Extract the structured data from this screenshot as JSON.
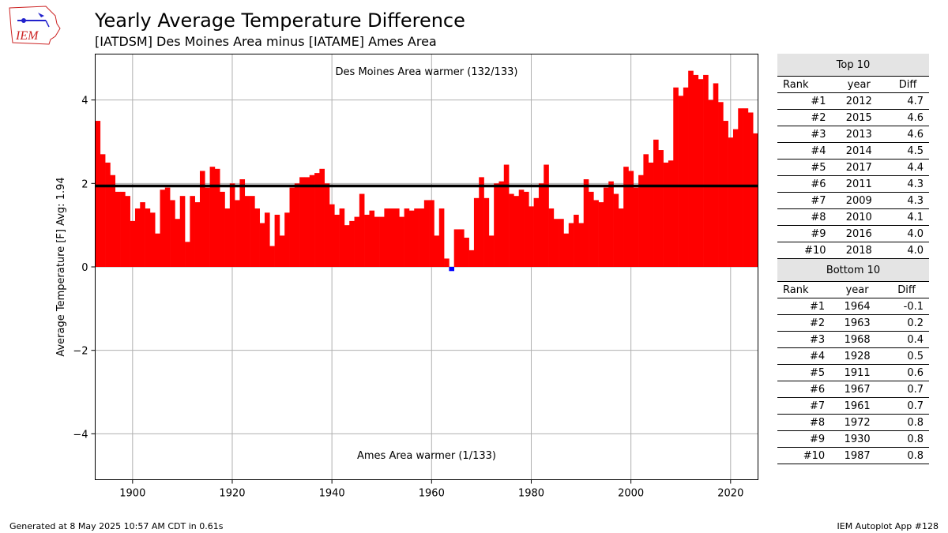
{
  "header": {
    "title": "Yearly Average Temperature Difference",
    "subtitle": "[IATDSM] Des Moines Area minus [IATAME] Ames Area",
    "logo_text": "IEM"
  },
  "chart_data": {
    "type": "bar",
    "x": [
      1893,
      1894,
      1895,
      1896,
      1897,
      1898,
      1899,
      1900,
      1901,
      1902,
      1903,
      1904,
      1905,
      1906,
      1907,
      1908,
      1909,
      1910,
      1911,
      1912,
      1913,
      1914,
      1915,
      1916,
      1917,
      1918,
      1919,
      1920,
      1921,
      1922,
      1923,
      1924,
      1925,
      1926,
      1927,
      1928,
      1929,
      1930,
      1931,
      1932,
      1933,
      1934,
      1935,
      1936,
      1937,
      1938,
      1939,
      1940,
      1941,
      1942,
      1943,
      1944,
      1945,
      1946,
      1947,
      1948,
      1949,
      1950,
      1951,
      1952,
      1953,
      1954,
      1955,
      1956,
      1957,
      1958,
      1959,
      1960,
      1961,
      1962,
      1963,
      1964,
      1965,
      1966,
      1967,
      1968,
      1969,
      1970,
      1971,
      1972,
      1973,
      1974,
      1975,
      1976,
      1977,
      1978,
      1979,
      1980,
      1981,
      1982,
      1983,
      1984,
      1985,
      1986,
      1987,
      1988,
      1989,
      1990,
      1991,
      1992,
      1993,
      1994,
      1995,
      1996,
      1997,
      1998,
      1999,
      2000,
      2001,
      2002,
      2003,
      2004,
      2005,
      2006,
      2007,
      2008,
      2009,
      2010,
      2011,
      2012,
      2013,
      2014,
      2015,
      2016,
      2017,
      2018,
      2019,
      2020,
      2021,
      2022,
      2023,
      2024,
      2025
    ],
    "values": [
      3.5,
      2.7,
      2.5,
      2.2,
      1.8,
      1.8,
      1.7,
      1.1,
      1.4,
      1.55,
      1.4,
      1.3,
      0.8,
      1.85,
      1.9,
      1.6,
      1.15,
      1.7,
      0.6,
      1.7,
      1.55,
      2.3,
      1.9,
      2.4,
      2.35,
      1.8,
      1.4,
      2.0,
      1.6,
      2.1,
      1.7,
      1.7,
      1.4,
      1.05,
      1.3,
      0.5,
      1.25,
      0.75,
      1.3,
      1.9,
      2.0,
      2.15,
      2.15,
      2.2,
      2.25,
      2.35,
      2.0,
      1.5,
      1.25,
      1.4,
      1.0,
      1.1,
      1.2,
      1.75,
      1.25,
      1.35,
      1.2,
      1.2,
      1.4,
      1.4,
      1.4,
      1.2,
      1.4,
      1.35,
      1.4,
      1.4,
      1.6,
      1.6,
      0.75,
      1.4,
      0.2,
      -0.1,
      0.9,
      0.9,
      0.7,
      0.4,
      1.65,
      2.15,
      1.65,
      0.75,
      2.0,
      2.05,
      2.45,
      1.75,
      1.7,
      1.85,
      1.8,
      1.45,
      1.65,
      2.0,
      2.45,
      1.4,
      1.15,
      1.15,
      0.8,
      1.05,
      1.25,
      1.05,
      2.1,
      1.8,
      1.6,
      1.55,
      1.9,
      2.05,
      1.75,
      1.4,
      2.4,
      2.3,
      1.9,
      2.2,
      2.7,
      2.5,
      3.05,
      2.8,
      2.5,
      2.55,
      4.3,
      4.1,
      4.3,
      4.7,
      4.6,
      4.5,
      4.6,
      4.0,
      4.4,
      3.95,
      3.5,
      3.1,
      3.3,
      3.8,
      3.8,
      3.7,
      3.2
    ],
    "average": 1.94,
    "xlim": [
      1892.5,
      2025.5
    ],
    "ylim": [
      -5.1,
      5.1
    ],
    "xticks": [
      1900,
      1920,
      1940,
      1960,
      1980,
      2000,
      2020
    ],
    "yticks": [
      4,
      2,
      0,
      -2,
      -4
    ],
    "ytick_labels": [
      "4",
      "2",
      "0",
      "−2",
      "−4"
    ],
    "ylabel": "Average Temperature [F] Avg: 1.94",
    "annotation_top": "Des Moines Area warmer (132/133)",
    "annotation_bottom": "Ames Area warmer (1/133)",
    "grid": true,
    "colors": {
      "positive": "#ff0000",
      "negative": "#0000ff",
      "average_line": "#000000",
      "grid": "#b0b0b0"
    }
  },
  "tables": {
    "top": {
      "caption": "Top 10",
      "headers": [
        "Rank",
        "year",
        "Diff"
      ],
      "rows": [
        [
          "#1",
          "2012",
          "4.7"
        ],
        [
          "#2",
          "2015",
          "4.6"
        ],
        [
          "#3",
          "2013",
          "4.6"
        ],
        [
          "#4",
          "2014",
          "4.5"
        ],
        [
          "#5",
          "2017",
          "4.4"
        ],
        [
          "#6",
          "2011",
          "4.3"
        ],
        [
          "#7",
          "2009",
          "4.3"
        ],
        [
          "#8",
          "2010",
          "4.1"
        ],
        [
          "#9",
          "2016",
          "4.0"
        ],
        [
          "#10",
          "2018",
          "4.0"
        ]
      ]
    },
    "bottom": {
      "caption": "Bottom 10",
      "headers": [
        "Rank",
        "year",
        "Diff"
      ],
      "rows": [
        [
          "#1",
          "1964",
          "-0.1"
        ],
        [
          "#2",
          "1963",
          "0.2"
        ],
        [
          "#3",
          "1968",
          "0.4"
        ],
        [
          "#4",
          "1928",
          "0.5"
        ],
        [
          "#5",
          "1911",
          "0.6"
        ],
        [
          "#6",
          "1967",
          "0.7"
        ],
        [
          "#7",
          "1961",
          "0.7"
        ],
        [
          "#8",
          "1972",
          "0.8"
        ],
        [
          "#9",
          "1930",
          "0.8"
        ],
        [
          "#10",
          "1987",
          "0.8"
        ]
      ]
    }
  },
  "footer": {
    "generated": "Generated at 8 May 2025 10:57 AM CDT in 0.61s",
    "app": "IEM Autoplot App #128"
  }
}
